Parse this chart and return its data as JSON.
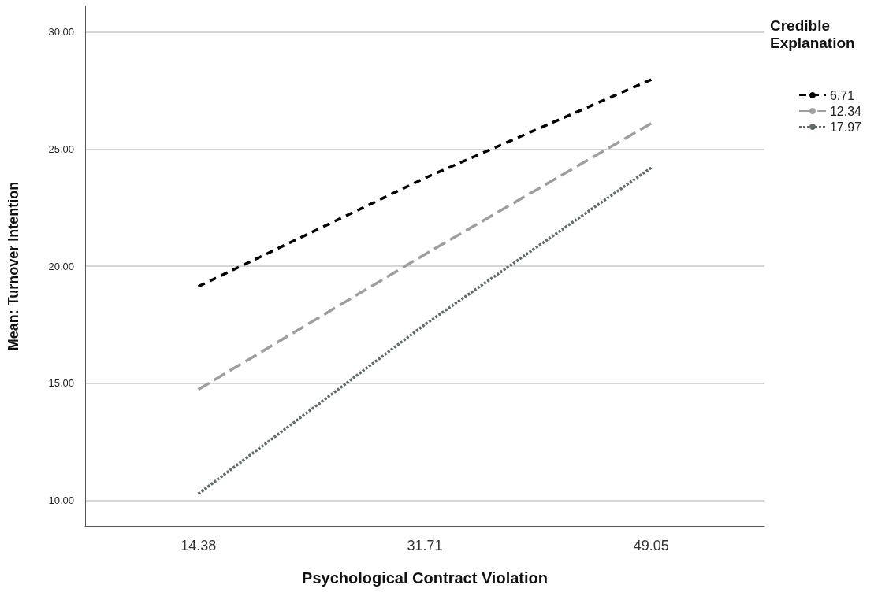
{
  "chart_data": {
    "type": "line",
    "xlabel": "Psychological Contract Violation",
    "ylabel": "Mean: Turnover Intention",
    "legend_title": "Credible Explanation",
    "categories": [
      "14.38",
      "31.71",
      "49.05"
    ],
    "ylim": [
      8.9,
      31.1
    ],
    "yticks": [
      {
        "value": 10,
        "label": "10.00"
      },
      {
        "value": 15,
        "label": "15.00"
      },
      {
        "value": 20,
        "label": "20.00"
      },
      {
        "value": 25,
        "label": "25.00"
      },
      {
        "value": 30,
        "label": "30.00"
      }
    ],
    "grid": "y",
    "legend": "top right",
    "marker": "none",
    "series": [
      {
        "name": "6.71",
        "color": "#000000",
        "line_style": "dashed",
        "values": [
          19.13,
          23.76,
          27.97
        ]
      },
      {
        "name": "12.34",
        "color": "#a09d9d",
        "line_style": "dashed",
        "values": [
          14.73,
          20.5,
          26.1
        ]
      },
      {
        "name": "17.97",
        "color": "#5f6b66",
        "line_style": "dotted",
        "values": [
          10.27,
          17.5,
          24.2
        ]
      }
    ]
  }
}
